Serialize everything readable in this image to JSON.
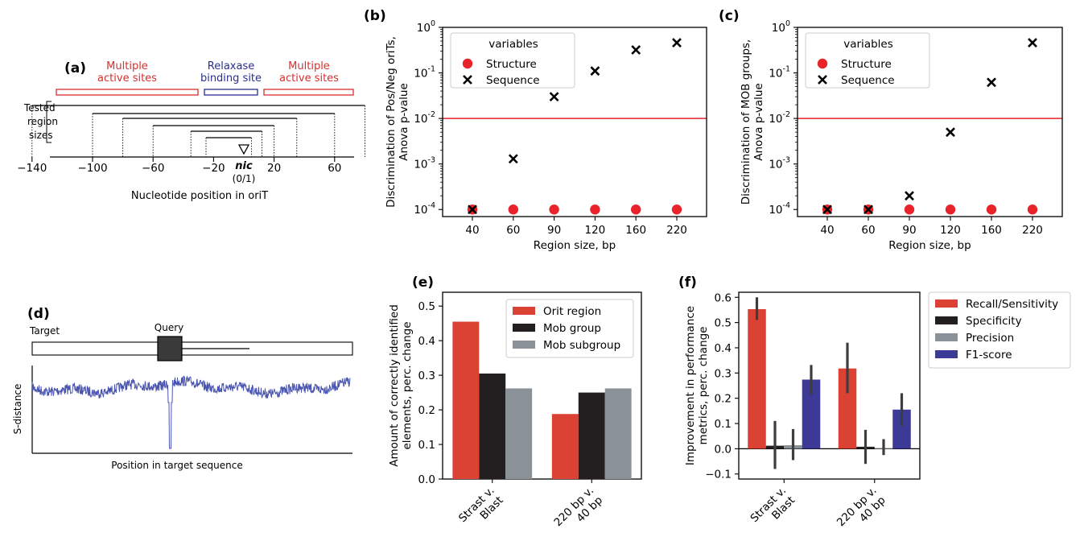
{
  "panels": {
    "a": {
      "label": "(a)",
      "top_labels": [
        {
          "lines": [
            "Multiple",
            "active sites"
          ],
          "color": "#d7302f"
        },
        {
          "lines": [
            "Relaxase",
            "binding site"
          ],
          "color": "#2a2f8f"
        },
        {
          "lines": [
            "Multiple",
            "active sites"
          ],
          "color": "#d7302f"
        }
      ],
      "side_label": [
        "Tested",
        "region",
        "sizes"
      ],
      "axis_ticks": [
        "−140",
        "−100",
        "−60",
        "−20",
        "20",
        "60"
      ],
      "nic_label": "nic",
      "nic_sub": "(0/1)",
      "xlabel": "Nucleotide position in oriT",
      "colors": {
        "red": "#d7302f",
        "blue": "#2a2f8f"
      }
    },
    "d": {
      "label": "(d)",
      "target_label": "Target",
      "query_label": "Query",
      "ylabel": "S-distance",
      "xlabel": "Position in target sequence",
      "colors": {
        "signal": "#4a55b0"
      }
    },
    "b": {
      "label": "(b)"
    },
    "c": {
      "label": "(c)"
    },
    "e": {
      "label": "(e)"
    },
    "f": {
      "label": "(f)"
    }
  },
  "chart_data": [
    {
      "id": "b",
      "type": "scatter",
      "x": [
        40,
        60,
        90,
        120,
        160,
        220
      ],
      "categories": [
        "40",
        "60",
        "90",
        "120",
        "160",
        "220"
      ],
      "series": [
        {
          "name": "Structure",
          "marker": "circle",
          "color": "#e8232a",
          "values": [
            0.0001,
            0.0001,
            0.0001,
            0.0001,
            0.0001,
            0.0001
          ]
        },
        {
          "name": "Sequence",
          "marker": "x",
          "color": "#000000",
          "values": [
            0.0001,
            0.0013,
            0.03,
            0.11,
            0.32,
            0.46
          ]
        }
      ],
      "xlabel": "Region size, bp",
      "ylabel_lines": [
        "Discrimination of Pos/Neg oriTs,",
        "Anova p-value"
      ],
      "yscale": "log",
      "ylim": [
        7e-05,
        1
      ],
      "yticks": [
        "10",
        "10",
        "10",
        "10",
        "10"
      ],
      "ytick_exps": [
        "-4",
        "-3",
        "-2",
        "-1",
        "0"
      ],
      "threshold": 0.01,
      "threshold_color": "#e8232a",
      "legend_title": "variables",
      "legend_position": "top-left"
    },
    {
      "id": "c",
      "type": "scatter",
      "x": [
        40,
        60,
        90,
        120,
        160,
        220
      ],
      "categories": [
        "40",
        "60",
        "90",
        "120",
        "160",
        "220"
      ],
      "series": [
        {
          "name": "Structure",
          "marker": "circle",
          "color": "#e8232a",
          "values": [
            0.0001,
            0.0001,
            0.0001,
            0.0001,
            0.0001,
            0.0001
          ]
        },
        {
          "name": "Sequence",
          "marker": "x",
          "color": "#000000",
          "values": [
            0.0001,
            0.0001,
            0.0002,
            0.005,
            0.062,
            0.46
          ]
        }
      ],
      "xlabel": "Region size, bp",
      "ylabel_lines": [
        "Discrimination of MOB groups,",
        "Anova p-value"
      ],
      "yscale": "log",
      "ylim": [
        7e-05,
        1
      ],
      "yticks": [
        "10",
        "10",
        "10",
        "10",
        "10"
      ],
      "ytick_exps": [
        "-4",
        "-3",
        "-2",
        "-1",
        "0"
      ],
      "threshold": 0.01,
      "threshold_color": "#e8232a",
      "legend_title": "variables",
      "legend_position": "top-left"
    },
    {
      "id": "e",
      "type": "bar",
      "categories": [
        [
          "Strast v.",
          "Blast"
        ],
        [
          "220 bp v.",
          "40 bp"
        ]
      ],
      "series": [
        {
          "name": "Orit region",
          "color": "#dc4234",
          "values": [
            0.455,
            0.188
          ]
        },
        {
          "name": "Mob group",
          "color": "#231f20",
          "values": [
            0.305,
            0.25
          ]
        },
        {
          "name": "Mob subgroup",
          "color": "#8b9198",
          "values": [
            0.262,
            0.262
          ]
        }
      ],
      "ylabel_lines": [
        "Amount of correctly identified",
        "elements, perc. change"
      ],
      "ylim": [
        0,
        0.54
      ],
      "yticks": [
        "0.0",
        "0.1",
        "0.2",
        "0.3",
        "0.4",
        "0.5"
      ],
      "legend_position": "top-right"
    },
    {
      "id": "f",
      "type": "bar",
      "categories": [
        [
          "Strast v.",
          "Blast"
        ],
        [
          "220 bp v.",
          "40 bp"
        ]
      ],
      "series": [
        {
          "name": "Recall/Sensitivity",
          "color": "#dc4234",
          "values": [
            0.553,
            0.318
          ],
          "err_low": [
            0.51,
            0.22
          ],
          "err_high": [
            0.6,
            0.42
          ]
        },
        {
          "name": "Specificity",
          "color": "#231f20",
          "values": [
            0.012,
            0.008
          ],
          "err_low": [
            -0.08,
            -0.06
          ],
          "err_high": [
            0.11,
            0.075
          ]
        },
        {
          "name": "Precision",
          "color": "#8b9198",
          "values": [
            0.014,
            0.0
          ],
          "err_low": [
            -0.045,
            -0.025
          ],
          "err_high": [
            0.078,
            0.038
          ]
        },
        {
          "name": "F1-score",
          "color": "#3c3a96",
          "values": [
            0.274,
            0.155
          ],
          "err_low": [
            0.215,
            0.09
          ],
          "err_high": [
            0.332,
            0.22
          ]
        }
      ],
      "ylabel_lines": [
        "Improvement in performance",
        "metrics, perc. change"
      ],
      "ylim": [
        -0.12,
        0.62
      ],
      "yticks": [
        "−0.1",
        "0.0",
        "0.1",
        "0.2",
        "0.3",
        "0.4",
        "0.5",
        "0.6"
      ],
      "legend_position": "outside-right"
    }
  ]
}
